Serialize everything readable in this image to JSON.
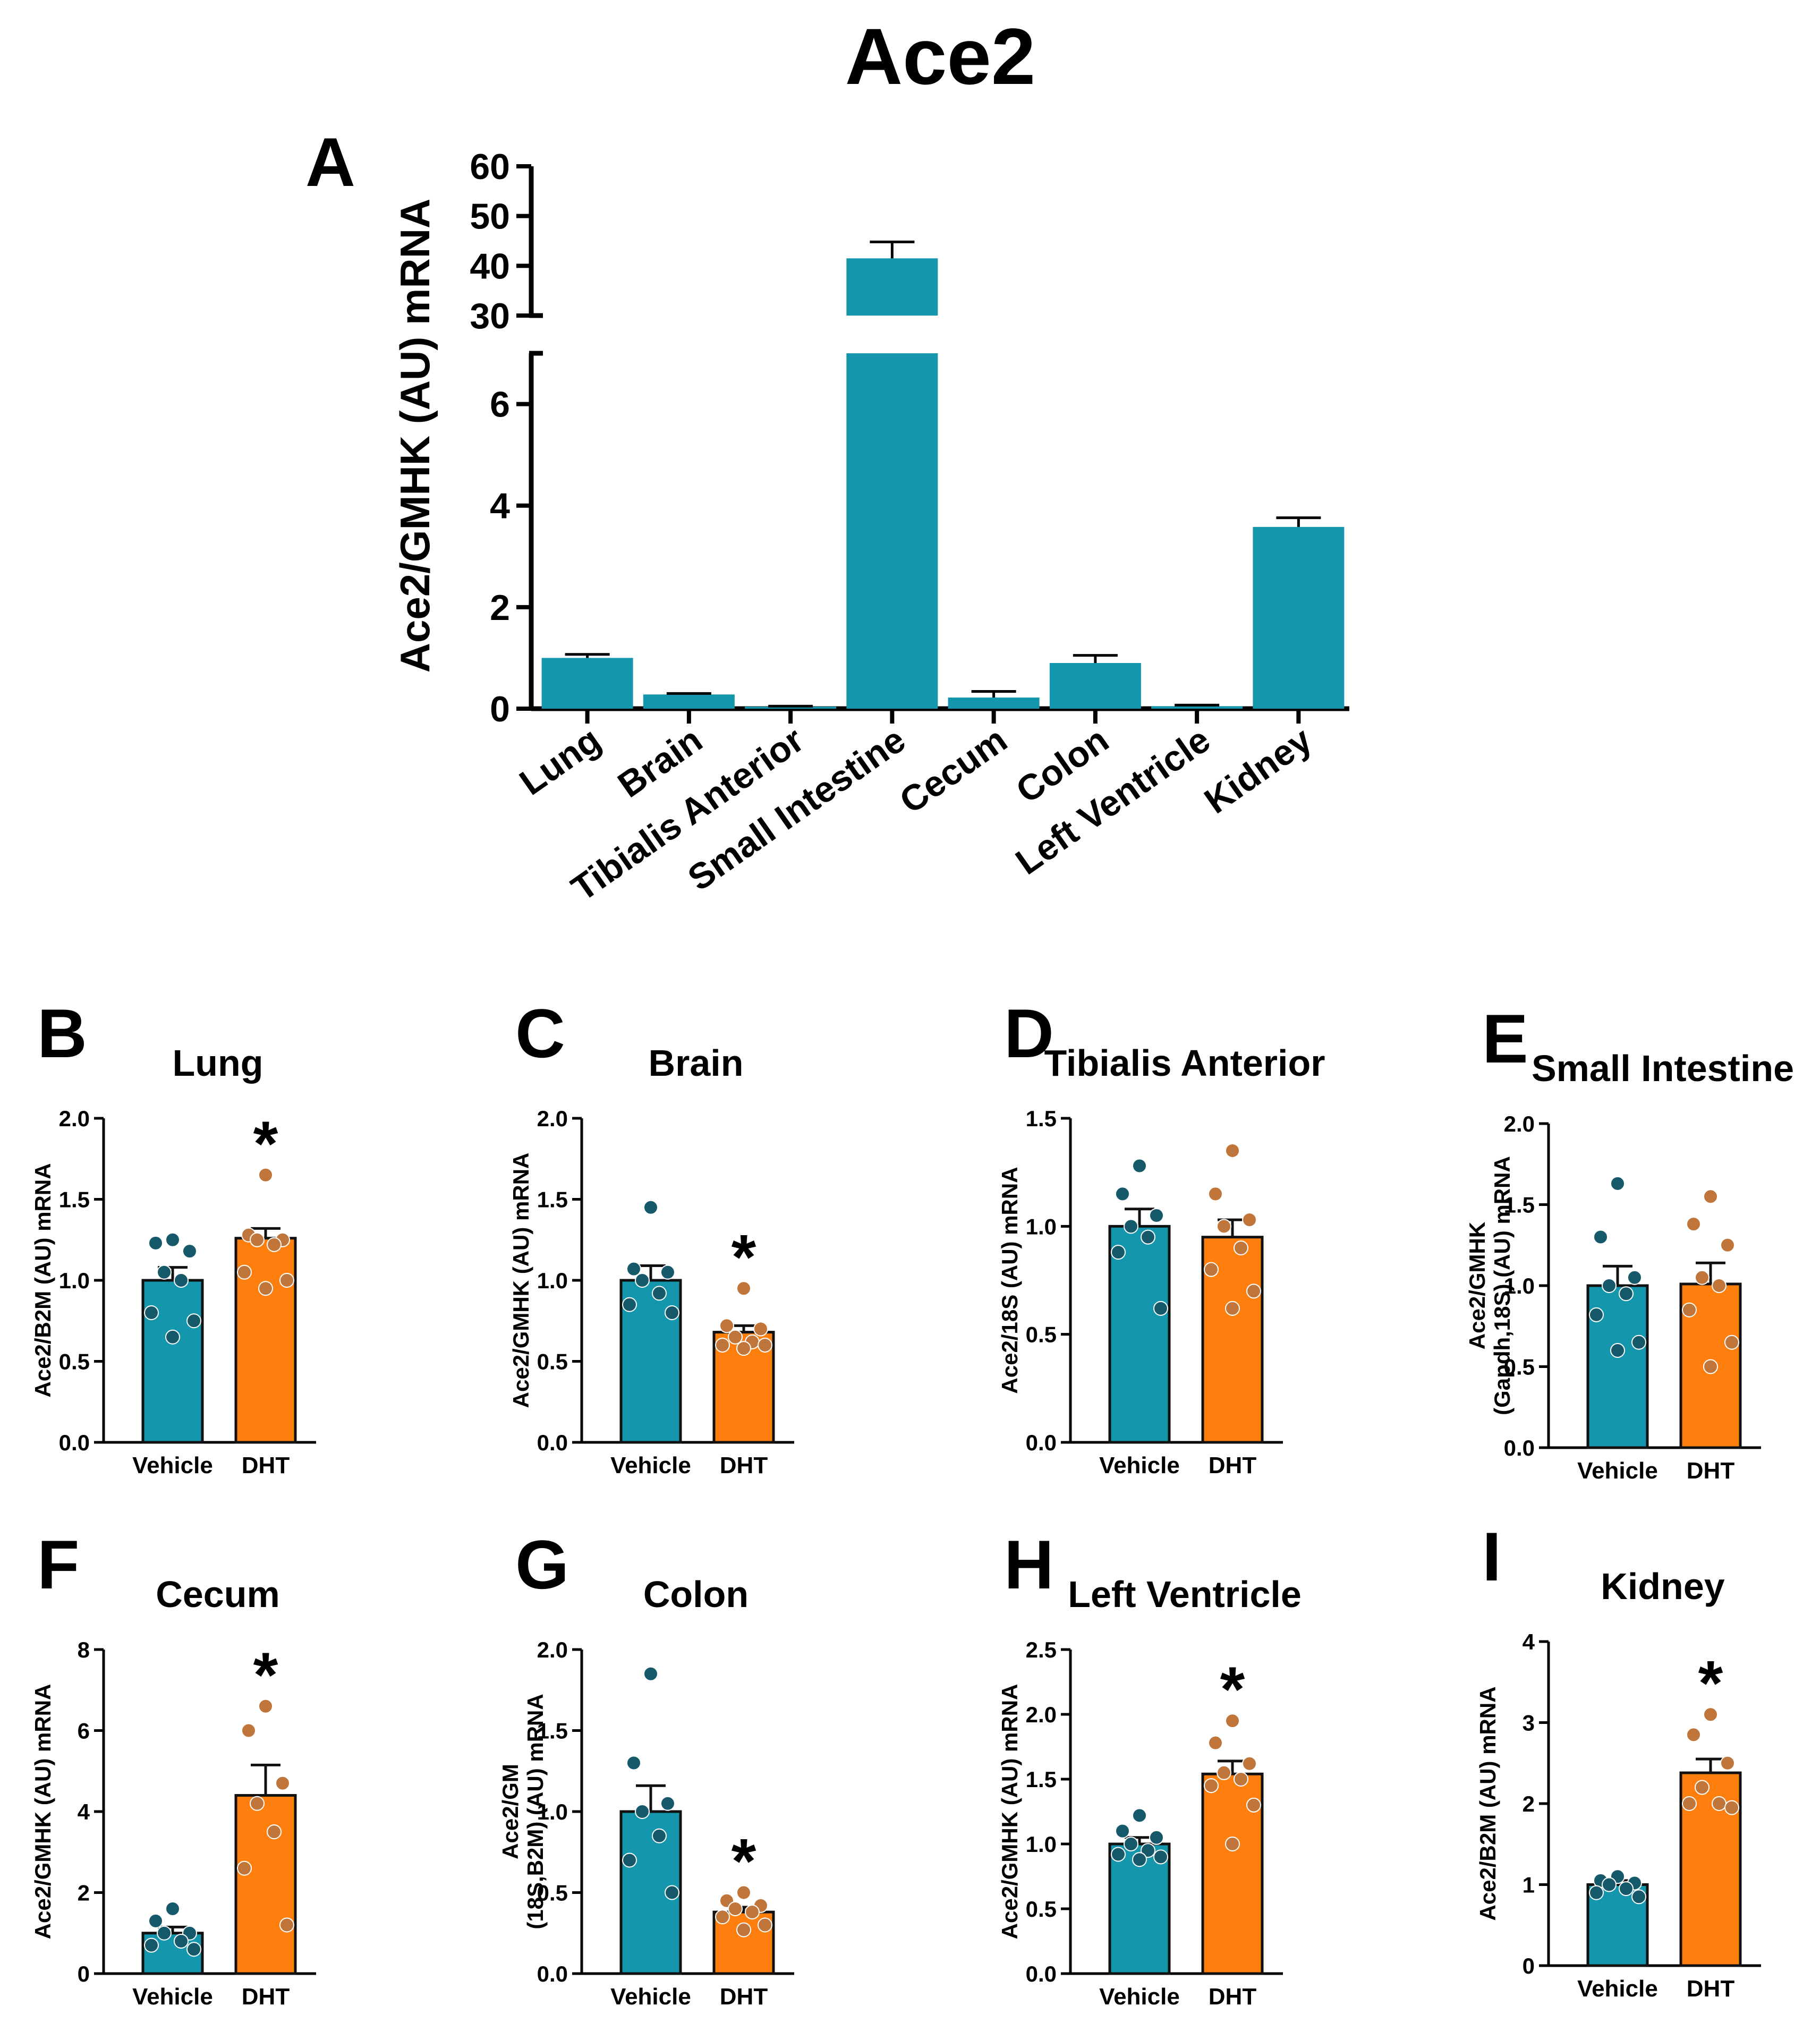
{
  "title": "Ace2",
  "colors": {
    "vehicle": "#1496ac",
    "dht": "#ff7f0e",
    "vehicle_dot": "#16596b",
    "dht_dot": "#c0763a",
    "axis": "#000000"
  },
  "chart_data": [
    {
      "panel": "A",
      "type": "bar",
      "title": "",
      "ylabel": "Ace2/GMHK (AU) mRNA",
      "categories": [
        "Lung",
        "Brain",
        "Tibialis Anterior",
        "Small Intestine",
        "Cecum",
        "Colon",
        "Left Ventricle",
        "Kidney"
      ],
      "values": [
        1.0,
        0.28,
        0.04,
        41.5,
        0.22,
        0.9,
        0.05,
        3.58
      ],
      "errors": [
        0.07,
        0.02,
        0.01,
        3.3,
        0.12,
        0.15,
        0.02,
        0.18
      ],
      "axis_break": {
        "lower_range": [
          0,
          7
        ],
        "upper_range": [
          30,
          60
        ]
      },
      "yticks_lower": [
        "0",
        "2",
        "4",
        "6"
      ],
      "yticks_upper": [
        "30",
        "40",
        "50",
        "60"
      ]
    },
    {
      "panel": "B",
      "type": "bar",
      "title": "Lung",
      "ylabel": "Ace2/B2M (AU) mRNA",
      "categories": [
        "Vehicle",
        "DHT"
      ],
      "ylim": [
        0,
        2.0
      ],
      "yticks": [
        "0.0",
        "0.5",
        "1.0",
        "1.5",
        "2.0"
      ],
      "values": [
        1.0,
        1.26
      ],
      "sem": [
        0.08,
        0.06
      ],
      "points": [
        [
          1.25,
          1.23,
          1.18,
          1.05,
          1.0,
          0.8,
          0.75,
          0.65
        ],
        [
          1.65,
          1.28,
          1.25,
          1.25,
          1.22,
          1.05,
          1.0,
          0.95
        ]
      ],
      "significance": "*",
      "significant_group": 1
    },
    {
      "panel": "C",
      "type": "bar",
      "title": "Brain",
      "ylabel": "Ace2/GMHK (AU) mRNA",
      "categories": [
        "Vehicle",
        "DHT"
      ],
      "ylim": [
        0,
        2.0
      ],
      "yticks": [
        "0.0",
        "0.5",
        "1.0",
        "1.5",
        "2.0"
      ],
      "values": [
        1.0,
        0.68
      ],
      "sem": [
        0.09,
        0.04
      ],
      "points": [
        [
          1.45,
          1.07,
          1.05,
          1.0,
          0.92,
          0.85,
          0.8
        ],
        [
          0.95,
          0.72,
          0.7,
          0.65,
          0.62,
          0.6,
          0.6,
          0.58
        ]
      ],
      "significance": "*",
      "significant_group": 1
    },
    {
      "panel": "D",
      "type": "bar",
      "title": "Tibialis Anterior",
      "ylabel": "Ace2/18S (AU) mRNA",
      "categories": [
        "Vehicle",
        "DHT"
      ],
      "ylim": [
        0,
        1.5
      ],
      "yticks": [
        "0.0",
        "0.5",
        "1.0",
        "1.5"
      ],
      "values": [
        1.0,
        0.95
      ],
      "sem": [
        0.08,
        0.08
      ],
      "points": [
        [
          1.28,
          1.15,
          1.05,
          1.0,
          0.95,
          0.88,
          0.62
        ],
        [
          1.35,
          1.15,
          1.03,
          1.0,
          0.9,
          0.8,
          0.7,
          0.62
        ]
      ],
      "significance": "",
      "significant_group": -1
    },
    {
      "panel": "E",
      "type": "bar",
      "title": "Small Intestine",
      "ylabel": "Ace2/GMHK (Gapdh,18S) (AU) mRNA",
      "ylabel_lines": [
        "Ace2/GMHK",
        "(Gapdh,18S) (AU) mRNA"
      ],
      "categories": [
        "Vehicle",
        "DHT"
      ],
      "ylim": [
        0,
        2.0
      ],
      "yticks": [
        "0.0",
        "0.5",
        "1.0",
        "1.5",
        "2.0"
      ],
      "values": [
        1.0,
        1.01
      ],
      "sem": [
        0.12,
        0.13
      ],
      "points": [
        [
          1.63,
          1.3,
          1.05,
          1.0,
          0.95,
          0.82,
          0.65,
          0.6
        ],
        [
          1.55,
          1.38,
          1.25,
          1.05,
          1.0,
          0.85,
          0.65,
          0.5
        ]
      ],
      "significance": "",
      "significant_group": -1
    },
    {
      "panel": "F",
      "type": "bar",
      "title": "Cecum",
      "ylabel": "Ace2/GMHK (AU) mRNA",
      "categories": [
        "Vehicle",
        "DHT"
      ],
      "ylim": [
        0,
        8
      ],
      "yticks": [
        "0",
        "2",
        "4",
        "6",
        "8"
      ],
      "values": [
        1.0,
        4.4
      ],
      "sem": [
        0.15,
        0.75
      ],
      "points": [
        [
          1.6,
          1.3,
          1.0,
          1.0,
          0.8,
          0.7,
          0.6
        ],
        [
          6.6,
          6.0,
          4.7,
          4.2,
          3.5,
          2.6,
          1.2
        ]
      ],
      "significance": "*",
      "significant_group": 1
    },
    {
      "panel": "G",
      "type": "bar",
      "title": "Colon",
      "ylabel": "Ace2/GM (18S,B2M) (AU) mRNA",
      "ylabel_lines": [
        "Ace2/GM",
        "(18S,B2M) (AU) mRNA"
      ],
      "categories": [
        "Vehicle",
        "DHT"
      ],
      "ylim": [
        0,
        2.0
      ],
      "yticks": [
        "0.0",
        "0.5",
        "1.0",
        "1.5",
        "2.0"
      ],
      "values": [
        1.0,
        0.38
      ],
      "sem": [
        0.16,
        0.03
      ],
      "points": [
        [
          1.85,
          1.3,
          1.05,
          1.0,
          0.85,
          0.7,
          0.5
        ],
        [
          0.5,
          0.45,
          0.42,
          0.4,
          0.38,
          0.35,
          0.3,
          0.27
        ]
      ],
      "significance": "*",
      "significant_group": 1
    },
    {
      "panel": "H",
      "type": "bar",
      "title": "Left Ventricle",
      "ylabel": "Ace2/GMHK (AU) mRNA",
      "categories": [
        "Vehicle",
        "DHT"
      ],
      "ylim": [
        0,
        2.5
      ],
      "yticks": [
        "0.0",
        "0.5",
        "1.0",
        "1.5",
        "2.0",
        "2.5"
      ],
      "values": [
        1.0,
        1.54
      ],
      "sem": [
        0.05,
        0.1
      ],
      "points": [
        [
          1.22,
          1.1,
          1.05,
          1.0,
          0.95,
          0.92,
          0.9,
          0.88
        ],
        [
          1.95,
          1.78,
          1.62,
          1.55,
          1.5,
          1.45,
          1.3,
          1.0
        ]
      ],
      "significance": "*",
      "significant_group": 1
    },
    {
      "panel": "I",
      "type": "bar",
      "title": "Kidney",
      "ylabel": "Ace2/B2M (AU) mRNA",
      "categories": [
        "Vehicle",
        "DHT"
      ],
      "ylim": [
        0,
        4
      ],
      "yticks": [
        "0",
        "1",
        "2",
        "3",
        "4"
      ],
      "values": [
        1.0,
        2.38
      ],
      "sem": [
        0.05,
        0.17
      ],
      "points": [
        [
          1.1,
          1.05,
          1.02,
          1.0,
          0.95,
          0.9,
          0.85
        ],
        [
          3.1,
          2.85,
          2.5,
          2.2,
          2.0,
          2.0,
          1.95
        ]
      ],
      "significance": "*",
      "significant_group": 1
    }
  ]
}
